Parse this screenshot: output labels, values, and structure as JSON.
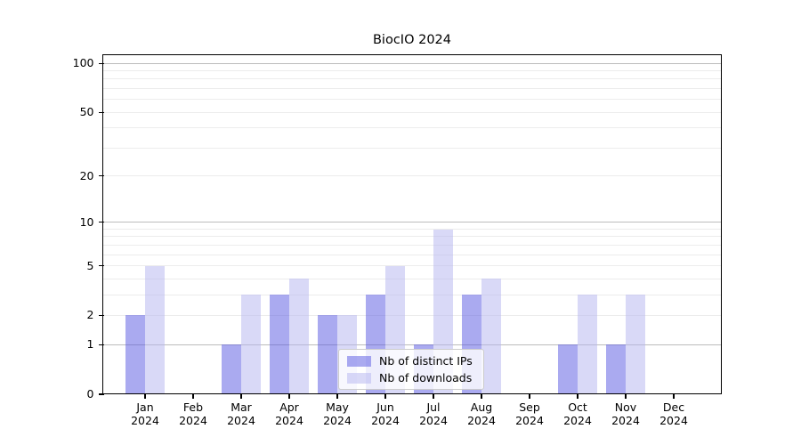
{
  "chart_data": {
    "type": "bar",
    "title": "BiocIO 2024",
    "categories": [
      "Jan",
      "Feb",
      "Mar",
      "Apr",
      "May",
      "Jun",
      "Jul",
      "Aug",
      "Sep",
      "Oct",
      "Nov",
      "Dec"
    ],
    "category_year": "2024",
    "series": [
      {
        "name": "Nb of distinct IPs",
        "color": "rgba(85,85,225,0.5)",
        "values": [
          2,
          0,
          1,
          3,
          2,
          3,
          1,
          3,
          0,
          1,
          1,
          0
        ]
      },
      {
        "name": "Nb of downloads",
        "color": "rgba(180,180,240,0.5)",
        "values": [
          5,
          0,
          3,
          4,
          2,
          5,
          9,
          4,
          0,
          3,
          3,
          0
        ]
      }
    ],
    "yscale": "log1p",
    "ylim": [
      0,
      113
    ],
    "ytick_values": [
      0,
      1,
      2,
      5,
      10,
      20,
      50,
      100
    ],
    "ytick_labels": [
      "0",
      "1",
      "2",
      "5",
      "10",
      "20",
      "50",
      "100"
    ],
    "grid_major_values": [
      1,
      10,
      100
    ],
    "grid_minor_values": [
      2,
      3,
      4,
      5,
      6,
      7,
      8,
      9,
      20,
      30,
      40,
      50,
      60,
      70,
      80,
      90
    ],
    "grid_major_color": "#bcbcbc",
    "grid_minor_color": "#ececec",
    "axis_color": "#000000",
    "background_color": "#ffffff",
    "legend_position": "lower center",
    "grid": "on"
  }
}
